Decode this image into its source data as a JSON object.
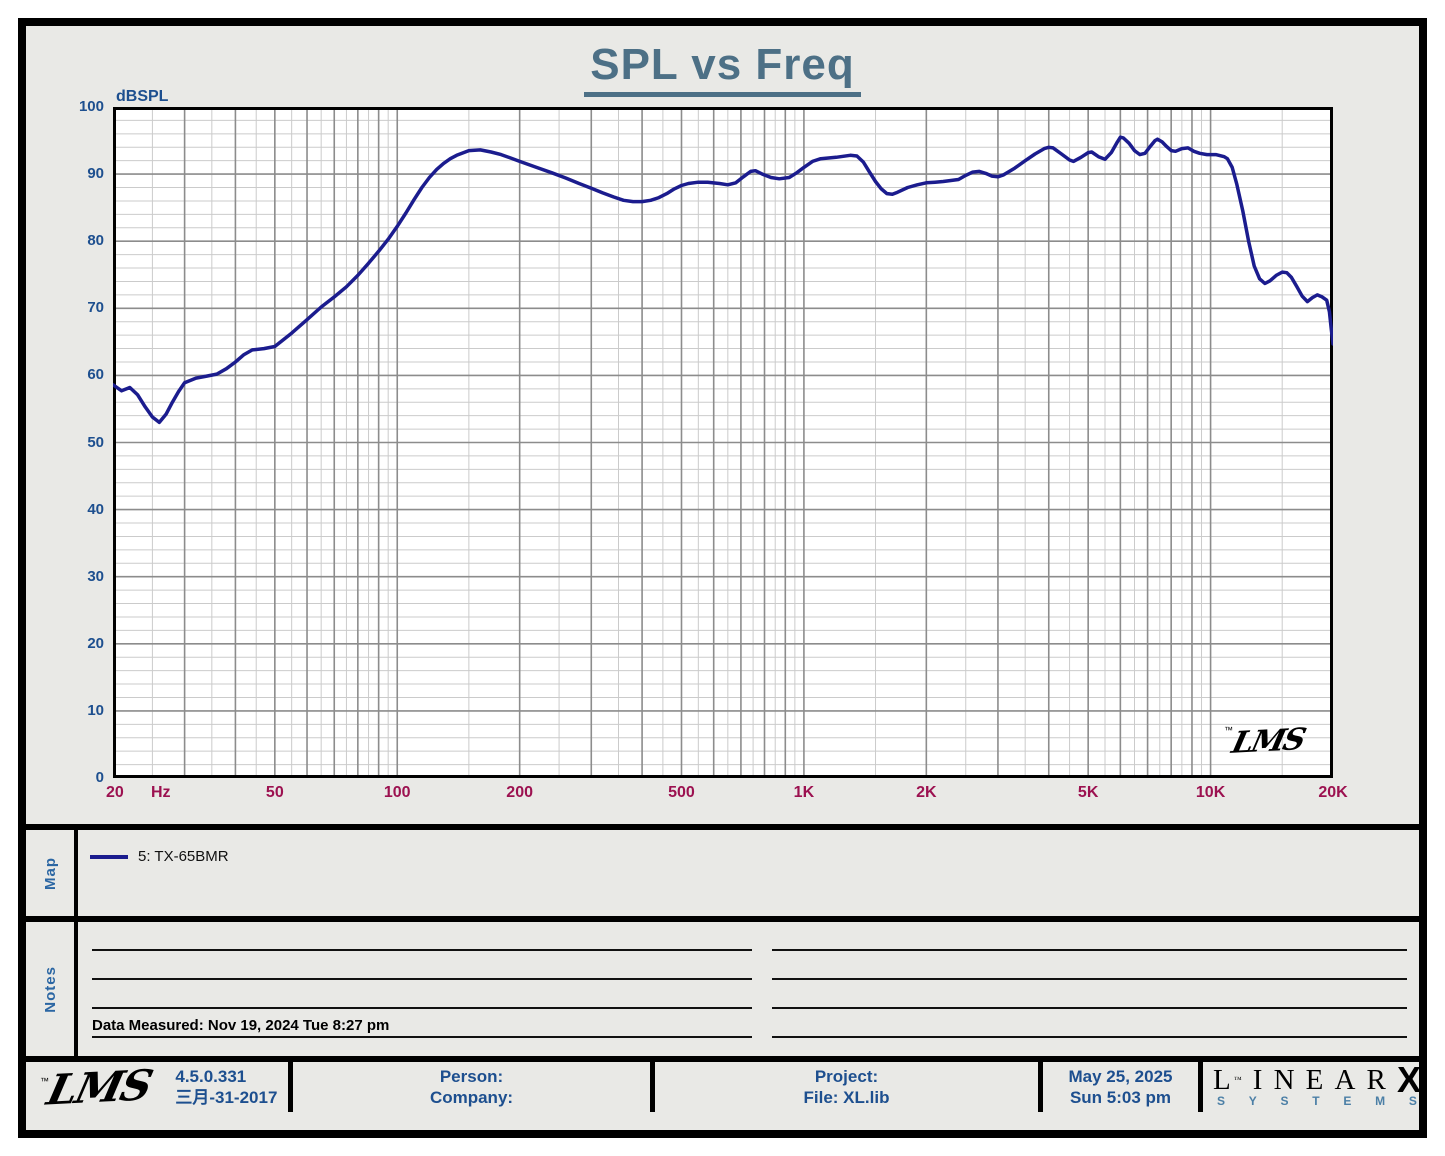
{
  "title": "SPL vs Freq",
  "watermark": "LMS",
  "colors": {
    "curve": "#1b1c8e",
    "title": "#4d7086",
    "y_axis_text": "#1d4f8f",
    "x_axis_text": "#9c1150",
    "grid_major": "#8c8c8c",
    "grid_minor": "#cbcbcb",
    "background": "#e9e9e6"
  },
  "chart_data": {
    "type": "line",
    "title": "SPL vs Freq",
    "ylabel": "dBSPL",
    "x_scale": "log",
    "xlim": [
      20,
      20000
    ],
    "ylim": [
      0,
      100
    ],
    "y_major_step": 10,
    "y_minor_step": 2,
    "grid": true,
    "legend_position": "map-panel-below",
    "y_ticks": [
      100,
      90,
      80,
      70,
      60,
      50,
      40,
      30,
      20,
      10,
      0
    ],
    "x_ticks": [
      {
        "v": 20,
        "label": "20",
        "align": "left"
      },
      {
        "v": 50,
        "label": "50"
      },
      {
        "v": 100,
        "label": "100"
      },
      {
        "v": 200,
        "label": "200"
      },
      {
        "v": 500,
        "label": "500"
      },
      {
        "v": 1000,
        "label": "1K"
      },
      {
        "v": 2000,
        "label": "2K"
      },
      {
        "v": 5000,
        "label": "5K"
      },
      {
        "v": 10000,
        "label": "10K"
      },
      {
        "v": 20000,
        "label": "20K"
      }
    ],
    "x_unit": {
      "v": 24.8,
      "label": "Hz"
    },
    "series": [
      {
        "name": "5: TX-65BMR",
        "color": "#1b1c8e",
        "points": [
          [
            20,
            58.6
          ],
          [
            21,
            57.7
          ],
          [
            22,
            58.2
          ],
          [
            23,
            57.1
          ],
          [
            24,
            55.3
          ],
          [
            25,
            53.8
          ],
          [
            26,
            53.0
          ],
          [
            27,
            54.2
          ],
          [
            28,
            56.0
          ],
          [
            29,
            57.6
          ],
          [
            30,
            58.9
          ],
          [
            32,
            59.6
          ],
          [
            34,
            59.9
          ],
          [
            36,
            60.2
          ],
          [
            38,
            61.0
          ],
          [
            40,
            62.0
          ],
          [
            42,
            63.1
          ],
          [
            44,
            63.8
          ],
          [
            47,
            64.0
          ],
          [
            50,
            64.3
          ],
          [
            55,
            66.3
          ],
          [
            60,
            68.3
          ],
          [
            65,
            70.2
          ],
          [
            70,
            71.7
          ],
          [
            75,
            73.2
          ],
          [
            80,
            74.9
          ],
          [
            85,
            76.7
          ],
          [
            90,
            78.5
          ],
          [
            95,
            80.3
          ],
          [
            100,
            82.2
          ],
          [
            105,
            84.2
          ],
          [
            110,
            86.2
          ],
          [
            115,
            88.0
          ],
          [
            120,
            89.5
          ],
          [
            125,
            90.7
          ],
          [
            130,
            91.6
          ],
          [
            135,
            92.3
          ],
          [
            140,
            92.8
          ],
          [
            150,
            93.5
          ],
          [
            160,
            93.6
          ],
          [
            170,
            93.3
          ],
          [
            180,
            92.9
          ],
          [
            190,
            92.4
          ],
          [
            200,
            91.9
          ],
          [
            220,
            91.0
          ],
          [
            240,
            90.2
          ],
          [
            260,
            89.4
          ],
          [
            280,
            88.6
          ],
          [
            300,
            87.9
          ],
          [
            320,
            87.2
          ],
          [
            340,
            86.6
          ],
          [
            360,
            86.1
          ],
          [
            380,
            85.9
          ],
          [
            400,
            85.9
          ],
          [
            420,
            86.1
          ],
          [
            440,
            86.5
          ],
          [
            460,
            87.1
          ],
          [
            480,
            87.8
          ],
          [
            500,
            88.3
          ],
          [
            520,
            88.6
          ],
          [
            550,
            88.8
          ],
          [
            580,
            88.8
          ],
          [
            620,
            88.6
          ],
          [
            650,
            88.4
          ],
          [
            680,
            88.7
          ],
          [
            710,
            89.6
          ],
          [
            740,
            90.4
          ],
          [
            760,
            90.5
          ],
          [
            790,
            90.0
          ],
          [
            830,
            89.5
          ],
          [
            870,
            89.3
          ],
          [
            920,
            89.5
          ],
          [
            960,
            90.2
          ],
          [
            1000,
            91.0
          ],
          [
            1050,
            91.9
          ],
          [
            1100,
            92.3
          ],
          [
            1200,
            92.5
          ],
          [
            1300,
            92.8
          ],
          [
            1350,
            92.7
          ],
          [
            1400,
            91.8
          ],
          [
            1450,
            90.3
          ],
          [
            1500,
            88.9
          ],
          [
            1550,
            87.8
          ],
          [
            1600,
            87.1
          ],
          [
            1650,
            87.0
          ],
          [
            1700,
            87.3
          ],
          [
            1800,
            88.0
          ],
          [
            1900,
            88.4
          ],
          [
            2000,
            88.7
          ],
          [
            2100,
            88.8
          ],
          [
            2200,
            88.9
          ],
          [
            2400,
            89.2
          ],
          [
            2500,
            89.8
          ],
          [
            2600,
            90.3
          ],
          [
            2700,
            90.4
          ],
          [
            2800,
            90.1
          ],
          [
            2900,
            89.7
          ],
          [
            3000,
            89.6
          ],
          [
            3100,
            89.9
          ],
          [
            3300,
            90.9
          ],
          [
            3500,
            92.0
          ],
          [
            3700,
            93.0
          ],
          [
            3900,
            93.8
          ],
          [
            4000,
            94.0
          ],
          [
            4100,
            93.9
          ],
          [
            4300,
            93.0
          ],
          [
            4500,
            92.1
          ],
          [
            4600,
            91.9
          ],
          [
            4800,
            92.5
          ],
          [
            5000,
            93.2
          ],
          [
            5100,
            93.3
          ],
          [
            5300,
            92.6
          ],
          [
            5500,
            92.2
          ],
          [
            5700,
            93.2
          ],
          [
            5900,
            94.8
          ],
          [
            6000,
            95.5
          ],
          [
            6100,
            95.4
          ],
          [
            6300,
            94.6
          ],
          [
            6500,
            93.5
          ],
          [
            6700,
            92.9
          ],
          [
            6900,
            93.1
          ],
          [
            7100,
            94.1
          ],
          [
            7300,
            95.0
          ],
          [
            7400,
            95.2
          ],
          [
            7600,
            94.8
          ],
          [
            7800,
            94.1
          ],
          [
            8000,
            93.5
          ],
          [
            8200,
            93.4
          ],
          [
            8500,
            93.8
          ],
          [
            8800,
            93.9
          ],
          [
            9100,
            93.4
          ],
          [
            9400,
            93.1
          ],
          [
            9800,
            92.9
          ],
          [
            10300,
            92.9
          ],
          [
            10800,
            92.6
          ],
          [
            11000,
            92.3
          ],
          [
            11300,
            91.0
          ],
          [
            11600,
            88.5
          ],
          [
            12000,
            84.5
          ],
          [
            12400,
            80.0
          ],
          [
            12800,
            76.3
          ],
          [
            13200,
            74.4
          ],
          [
            13600,
            73.7
          ],
          [
            14000,
            74.1
          ],
          [
            14500,
            74.9
          ],
          [
            15000,
            75.4
          ],
          [
            15400,
            75.3
          ],
          [
            15800,
            74.6
          ],
          [
            16300,
            73.2
          ],
          [
            16800,
            71.8
          ],
          [
            17300,
            71.0
          ],
          [
            17800,
            71.6
          ],
          [
            18300,
            72.0
          ],
          [
            18800,
            71.7
          ],
          [
            19300,
            71.2
          ],
          [
            19600,
            69.5
          ],
          [
            19800,
            67.0
          ],
          [
            20000,
            64.7
          ]
        ]
      }
    ]
  },
  "map": {
    "label": "Map"
  },
  "notes": {
    "label": "Notes",
    "data_measured": "Data Measured: Nov 19, 2024  Tue  8:27 pm"
  },
  "footer": {
    "lms_logo": "LMS",
    "version": "4.5.0.331",
    "version_date": "三月-31-2017",
    "person_label": "Person:",
    "company_label": "Company:",
    "project_label": "Project:",
    "file_label": "File: XL.lib",
    "date": "May 25, 2025",
    "time": "Sun  5:03 pm",
    "brand_word": "LINEAR",
    "brand_x": "X",
    "brand_letters": [
      "S",
      "Y",
      "S",
      "T",
      "E",
      "M",
      "S"
    ]
  }
}
